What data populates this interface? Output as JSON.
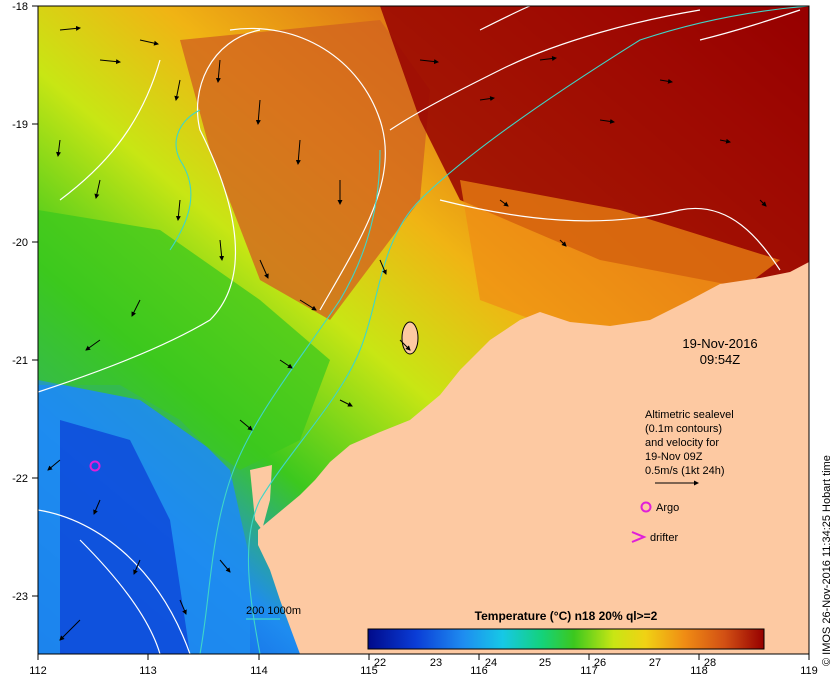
{
  "map": {
    "lon_ticks": [
      "112",
      "113",
      "114",
      "115",
      "116",
      "117",
      "118",
      "119"
    ],
    "lat_ticks": [
      "-18",
      "-19",
      "-20",
      "-21",
      "-22",
      "-23"
    ],
    "date_line1": "19-Nov-2016",
    "date_line2": "09:54Z",
    "legend_lines": [
      "Altimetric sealevel",
      "(0.1m contours)",
      "and velocity for",
      "19-Nov 09Z",
      "0.5m/s (1kt 24h)"
    ],
    "argo_label": "Argo",
    "drifter_label": "drifter",
    "bathy_label": "200  1000m",
    "colorbar_title": "Temperature (°C) n18 20% ql>=2",
    "colorbar_ticks": [
      "22",
      "23",
      "24",
      "25",
      "26",
      "27",
      "28"
    ],
    "credit": "© IMOS 26-Nov-2016 11:34:25 Hobart time",
    "colors": {
      "land": "#fdc9a2",
      "argo": "#e01fd8",
      "bathy": "#3fd6c8"
    }
  }
}
